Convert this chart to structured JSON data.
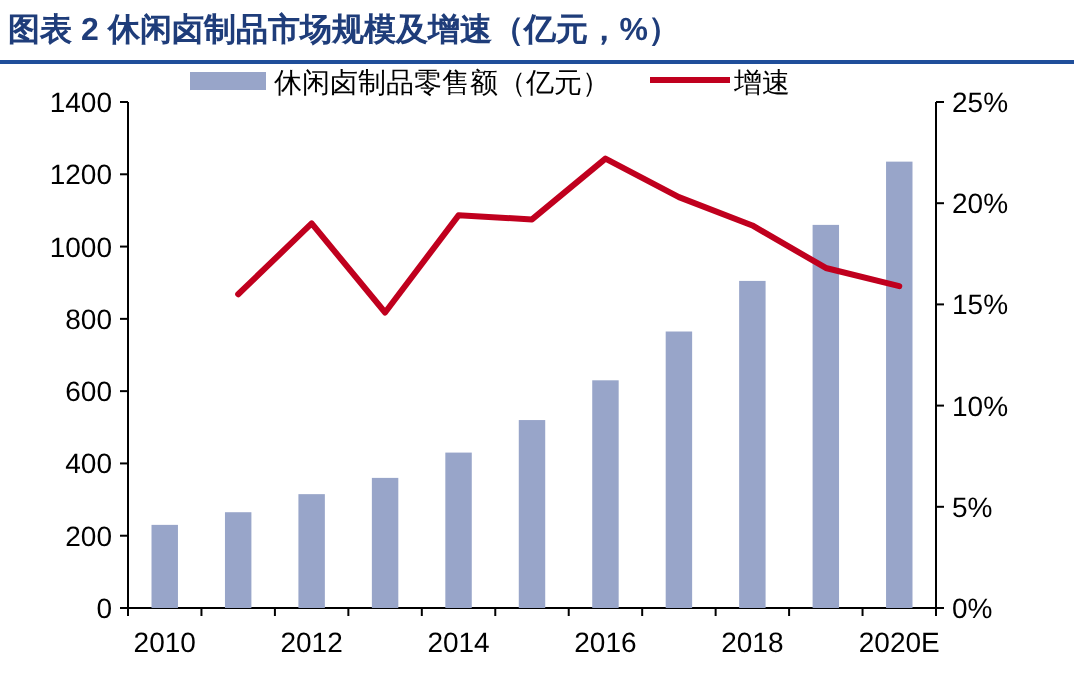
{
  "chart_data": {
    "type": "bar",
    "title": "图表 2  休闲卤制品市场规模及增速（亿元，%）",
    "categories": [
      "2010",
      null,
      "2012",
      null,
      "2014",
      null,
      "2016",
      null,
      "2018",
      null,
      "2020E"
    ],
    "series": [
      {
        "name": "休闲卤制品零售额（亿元）",
        "color": "#98a5c9",
        "values": [
          230,
          265,
          315,
          360,
          430,
          520,
          630,
          765,
          905,
          1060,
          1235
        ]
      },
      {
        "name": "增速",
        "type": "line",
        "axis": "y2",
        "color": "#c0001e",
        "values": [
          null,
          15.5,
          19.0,
          14.6,
          19.4,
          19.2,
          22.2,
          20.3,
          18.9,
          16.8,
          15.9
        ]
      }
    ],
    "ylim": [
      0,
      1400
    ],
    "yticks": [
      0,
      200,
      400,
      600,
      800,
      1000,
      1200,
      1400
    ],
    "y2lim": [
      0,
      25
    ],
    "y2ticks": [
      {
        "value": 0,
        "label": "0%"
      },
      {
        "value": 5,
        "label": "5%"
      },
      {
        "value": 10,
        "label": "10%"
      },
      {
        "value": 15,
        "label": "15%"
      },
      {
        "value": 20,
        "label": "20%"
      },
      {
        "value": 25,
        "label": "25%"
      }
    ],
    "legend": "top",
    "grid": false,
    "marker": "none",
    "line_style": "solid"
  }
}
